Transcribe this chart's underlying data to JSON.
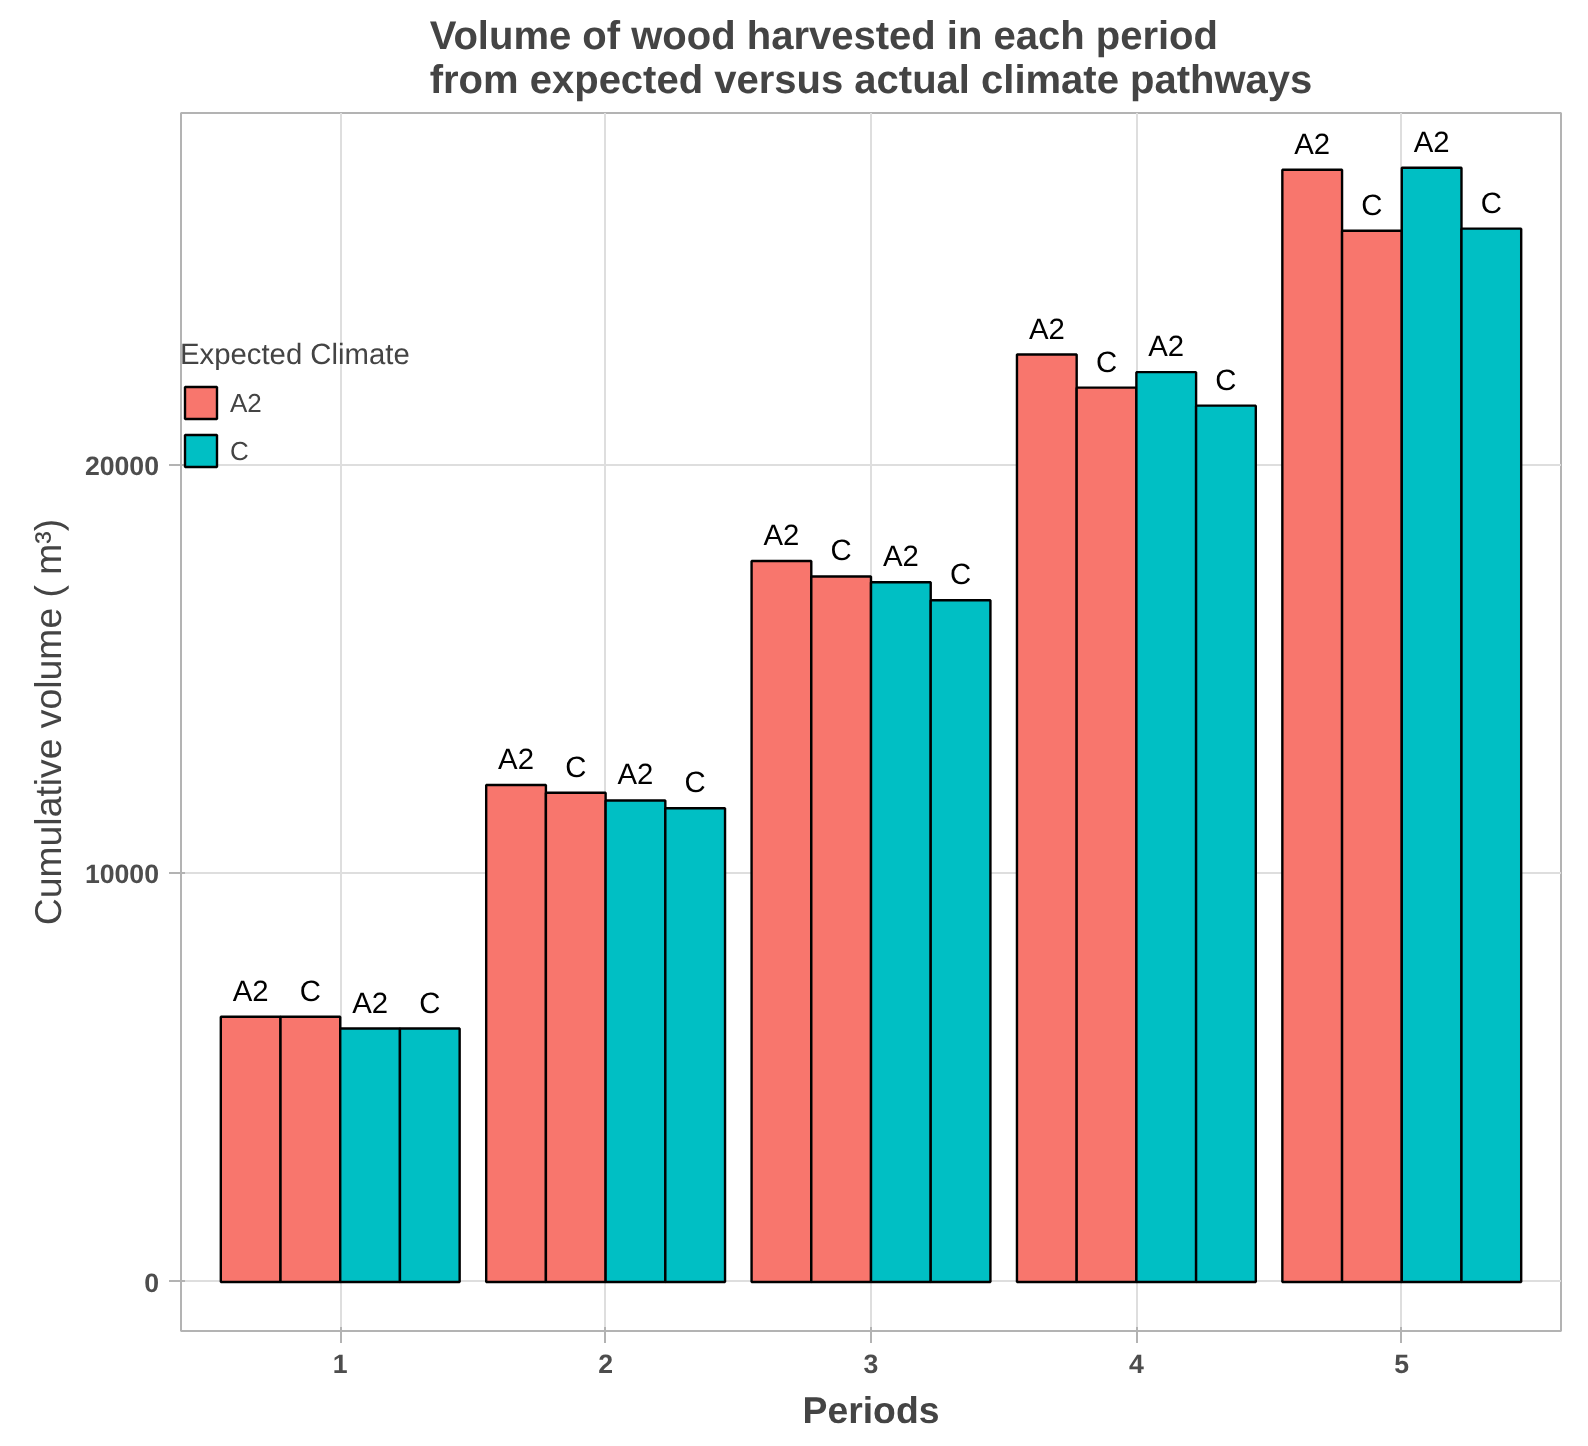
{
  "chart_data": {
    "type": "bar",
    "title": "Volume of wood harvested in each period\nfrom expected versus actual climate pathways",
    "xlabel": "Periods",
    "ylabel": "Cumulative volume ( m³)",
    "legend_title": "Expected Climate",
    "categories": [
      "1",
      "2",
      "3",
      "4",
      "5"
    ],
    "series": [
      {
        "name": "A2",
        "color": "#f8766d",
        "values": [
          6490,
          12160,
          17640,
          22690,
          27210
        ],
        "value_labels": [
          "A2",
          "A2",
          "A2",
          "A2",
          "A2"
        ]
      },
      {
        "color": "#f8766d",
        "values": [
          6490,
          11970,
          17260,
          21880,
          25720
        ],
        "value_labels": [
          "C",
          "C",
          "C",
          "C",
          "C"
        ]
      },
      {
        "name": "C",
        "color": "#00bfc4",
        "values": [
          6200,
          11780,
          17120,
          22260,
          27260
        ],
        "value_labels": [
          "A2",
          "A2",
          "A2",
          "A2",
          "A2"
        ]
      },
      {
        "color": "#00bfc4",
        "values": [
          6200,
          11590,
          16680,
          21440,
          25770
        ],
        "value_labels": [
          "C",
          "C",
          "C",
          "C",
          "C"
        ]
      }
    ],
    "ylim": [
      -1200,
      28600
    ],
    "yticks": [
      0,
      10000,
      20000
    ],
    "grid": true,
    "legend": "top left"
  }
}
